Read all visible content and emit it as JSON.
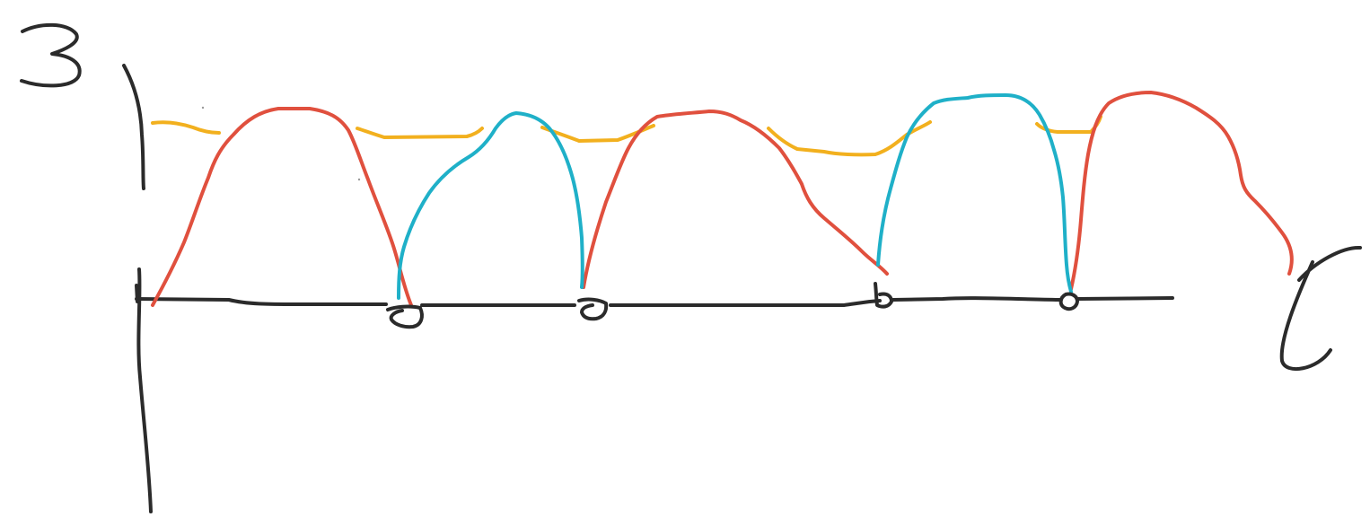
{
  "colors": {
    "ink": "#2b2b2b",
    "red_curve": "#e0503e",
    "cyan_curve": "#1fb0c8",
    "yellow_curve": "#f2b01e",
    "background": "#ffffff"
  },
  "glyph_names": {
    "vertical_axis": "3",
    "horizontal_axis": "t"
  },
  "marker_shapes": [
    "a",
    "a",
    "b",
    "o"
  ]
}
